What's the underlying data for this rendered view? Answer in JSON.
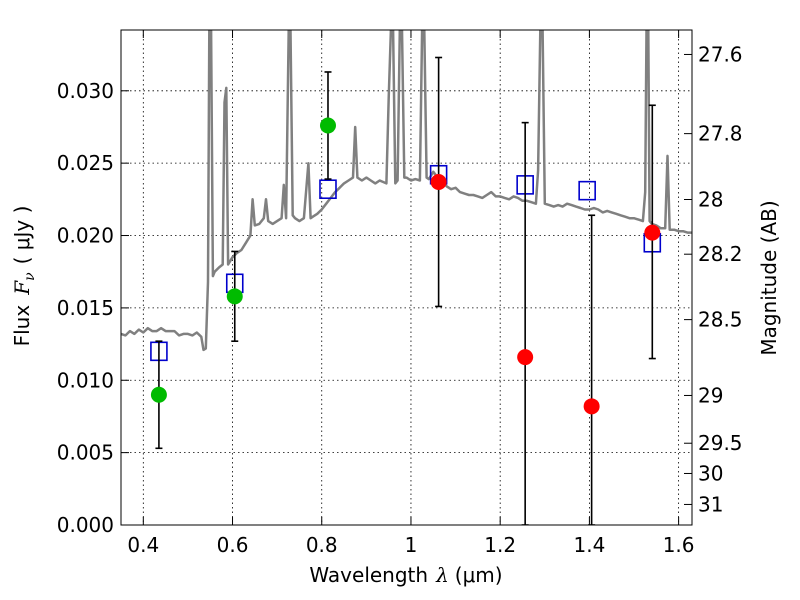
{
  "chart_data": {
    "type": "scatter",
    "xlabel_main": "Wavelength",
    "xlabel_symbol": "λ",
    "xlabel_unit": "(μm)",
    "ylabel_main": "Flux",
    "ylabel_symbol": "F",
    "ylabel_sub": "ν",
    "ylabel_unit": "( μJy )",
    "y2label": "Magnitude (AB)",
    "xlim": [
      0.35,
      1.63
    ],
    "ylim": [
      0.0,
      0.0342
    ],
    "grid": true,
    "x_ticks": [
      {
        "value": 0.4,
        "label": "0.4"
      },
      {
        "value": 0.6,
        "label": "0.6"
      },
      {
        "value": 0.8,
        "label": "0.8"
      },
      {
        "value": 1.0,
        "label": "1"
      },
      {
        "value": 1.2,
        "label": "1.2"
      },
      {
        "value": 1.4,
        "label": "1.4"
      },
      {
        "value": 1.6,
        "label": "1.6"
      }
    ],
    "y_ticks": [
      {
        "value": 0.0,
        "label": "0.000"
      },
      {
        "value": 0.005,
        "label": "0.005"
      },
      {
        "value": 0.01,
        "label": "0.010"
      },
      {
        "value": 0.015,
        "label": "0.015"
      },
      {
        "value": 0.02,
        "label": "0.020"
      },
      {
        "value": 0.025,
        "label": "0.025"
      },
      {
        "value": 0.03,
        "label": "0.030"
      }
    ],
    "y2_ticks": [
      {
        "label": "27.6",
        "flux": 0.03251
      },
      {
        "label": "27.8",
        "flux": 0.02704
      },
      {
        "label": "28",
        "flux": 0.02249
      },
      {
        "label": "28.2",
        "flux": 0.01871
      },
      {
        "label": "28.5",
        "flux": 0.01419
      },
      {
        "label": "29",
        "flux": 0.00895
      },
      {
        "label": "29.5",
        "flux": 0.00565
      },
      {
        "label": "30",
        "flux": 0.00356
      },
      {
        "label": "31",
        "flux": 0.00142
      }
    ],
    "model_spectrum": {
      "color": "#808080",
      "points": [
        [
          0.35,
          0.0132
        ],
        [
          0.36,
          0.0131
        ],
        [
          0.37,
          0.0134
        ],
        [
          0.38,
          0.0132
        ],
        [
          0.39,
          0.0135
        ],
        [
          0.4,
          0.0133
        ],
        [
          0.41,
          0.0136
        ],
        [
          0.42,
          0.0134
        ],
        [
          0.43,
          0.0134
        ],
        [
          0.44,
          0.0136
        ],
        [
          0.45,
          0.0134
        ],
        [
          0.46,
          0.0134
        ],
        [
          0.47,
          0.0134
        ],
        [
          0.48,
          0.0131
        ],
        [
          0.49,
          0.0132
        ],
        [
          0.5,
          0.0132
        ],
        [
          0.51,
          0.0131
        ],
        [
          0.52,
          0.0133
        ],
        [
          0.53,
          0.013
        ],
        [
          0.535,
          0.0121
        ],
        [
          0.54,
          0.0122
        ],
        [
          0.545,
          0.0168
        ],
        [
          0.548,
          0.0342
        ],
        [
          0.552,
          0.0342
        ],
        [
          0.556,
          0.0172
        ],
        [
          0.56,
          0.0175
        ],
        [
          0.57,
          0.0178
        ],
        [
          0.578,
          0.018
        ],
        [
          0.582,
          0.0292
        ],
        [
          0.586,
          0.0302
        ],
        [
          0.59,
          0.018
        ],
        [
          0.6,
          0.0185
        ],
        [
          0.61,
          0.0188
        ],
        [
          0.62,
          0.019
        ],
        [
          0.63,
          0.0195
        ],
        [
          0.64,
          0.02
        ],
        [
          0.645,
          0.0225
        ],
        [
          0.65,
          0.0207
        ],
        [
          0.66,
          0.0208
        ],
        [
          0.67,
          0.0212
        ],
        [
          0.675,
          0.0225
        ],
        [
          0.68,
          0.021
        ],
        [
          0.69,
          0.0208
        ],
        [
          0.7,
          0.021
        ],
        [
          0.71,
          0.0212
        ],
        [
          0.715,
          0.0235
        ],
        [
          0.72,
          0.0212
        ],
        [
          0.726,
          0.0342
        ],
        [
          0.73,
          0.0342
        ],
        [
          0.735,
          0.0214
        ],
        [
          0.74,
          0.0212
        ],
        [
          0.75,
          0.021
        ],
        [
          0.76,
          0.0212
        ],
        [
          0.77,
          0.025
        ],
        [
          0.775,
          0.0212
        ],
        [
          0.78,
          0.0213
        ],
        [
          0.79,
          0.0215
        ],
        [
          0.8,
          0.0218
        ],
        [
          0.81,
          0.0222
        ],
        [
          0.82,
          0.0226
        ],
        [
          0.83,
          0.023
        ],
        [
          0.84,
          0.0233
        ],
        [
          0.85,
          0.0236
        ],
        [
          0.86,
          0.0238
        ],
        [
          0.87,
          0.024
        ],
        [
          0.875,
          0.0275
        ],
        [
          0.88,
          0.024
        ],
        [
          0.89,
          0.0238
        ],
        [
          0.9,
          0.024
        ],
        [
          0.91,
          0.0238
        ],
        [
          0.92,
          0.0236
        ],
        [
          0.93,
          0.0238
        ],
        [
          0.945,
          0.0236
        ],
        [
          0.95,
          0.0295
        ],
        [
          0.955,
          0.0342
        ],
        [
          0.96,
          0.0342
        ],
        [
          0.965,
          0.0236
        ],
        [
          0.97,
          0.0238
        ],
        [
          0.975,
          0.0342
        ],
        [
          0.98,
          0.0342
        ],
        [
          0.985,
          0.024
        ],
        [
          0.99,
          0.024
        ],
        [
          1.0,
          0.0238
        ],
        [
          1.01,
          0.0239
        ],
        [
          1.02,
          0.0238
        ],
        [
          1.025,
          0.0342
        ],
        [
          1.03,
          0.0342
        ],
        [
          1.035,
          0.024
        ],
        [
          1.04,
          0.0239
        ],
        [
          1.05,
          0.0244
        ],
        [
          1.06,
          0.024
        ],
        [
          1.07,
          0.0238
        ],
        [
          1.08,
          0.0234
        ],
        [
          1.09,
          0.0232
        ],
        [
          1.1,
          0.0233
        ],
        [
          1.11,
          0.023
        ],
        [
          1.12,
          0.0229
        ],
        [
          1.13,
          0.0228
        ],
        [
          1.14,
          0.0228
        ],
        [
          1.15,
          0.0227
        ],
        [
          1.16,
          0.0226
        ],
        [
          1.17,
          0.0228
        ],
        [
          1.18,
          0.023
        ],
        [
          1.19,
          0.0227
        ],
        [
          1.2,
          0.0227
        ],
        [
          1.21,
          0.0226
        ],
        [
          1.22,
          0.0225
        ],
        [
          1.23,
          0.0227
        ],
        [
          1.24,
          0.0226
        ],
        [
          1.25,
          0.0224
        ],
        [
          1.26,
          0.0224
        ],
        [
          1.27,
          0.0223
        ],
        [
          1.28,
          0.0222
        ],
        [
          1.285,
          0.0245
        ],
        [
          1.29,
          0.0342
        ],
        [
          1.295,
          0.0342
        ],
        [
          1.3,
          0.0222
        ],
        [
          1.31,
          0.0221
        ],
        [
          1.32,
          0.022
        ],
        [
          1.33,
          0.0221
        ],
        [
          1.34,
          0.022
        ],
        [
          1.35,
          0.0222
        ],
        [
          1.36,
          0.0221
        ],
        [
          1.37,
          0.022
        ],
        [
          1.38,
          0.0219
        ],
        [
          1.39,
          0.0218
        ],
        [
          1.4,
          0.0218
        ],
        [
          1.41,
          0.0219
        ],
        [
          1.42,
          0.0218
        ],
        [
          1.43,
          0.0216
        ],
        [
          1.44,
          0.0217
        ],
        [
          1.45,
          0.0216
        ],
        [
          1.46,
          0.0215
        ],
        [
          1.47,
          0.0214
        ],
        [
          1.48,
          0.0213
        ],
        [
          1.49,
          0.0212
        ],
        [
          1.5,
          0.0212
        ],
        [
          1.51,
          0.0211
        ],
        [
          1.52,
          0.021
        ],
        [
          1.525,
          0.023
        ],
        [
          1.528,
          0.0342
        ],
        [
          1.532,
          0.0342
        ],
        [
          1.535,
          0.021
        ],
        [
          1.54,
          0.0208
        ],
        [
          1.55,
          0.0207
        ],
        [
          1.56,
          0.0205
        ],
        [
          1.57,
          0.0205
        ],
        [
          1.575,
          0.0255
        ],
        [
          1.58,
          0.0204
        ],
        [
          1.59,
          0.0204
        ],
        [
          1.6,
          0.0203
        ],
        [
          1.61,
          0.0203
        ],
        [
          1.62,
          0.0202
        ],
        [
          1.63,
          0.0202
        ]
      ]
    },
    "model_photometry": {
      "color": "#0000cc",
      "points": [
        {
          "x": 0.435,
          "y": 0.012
        },
        {
          "x": 0.605,
          "y": 0.0167
        },
        {
          "x": 0.814,
          "y": 0.0232
        },
        {
          "x": 1.062,
          "y": 0.0242
        },
        {
          "x": 1.256,
          "y": 0.0235
        },
        {
          "x": 1.395,
          "y": 0.0231
        },
        {
          "x": 1.541,
          "y": 0.0195
        }
      ]
    },
    "detections": {
      "color": "#00bb00",
      "points": [
        {
          "x": 0.435,
          "y": 0.009,
          "ylo": 0.0053,
          "yhi": 0.0127
        },
        {
          "x": 0.605,
          "y": 0.0158,
          "ylo": 0.0127,
          "yhi": 0.0189
        },
        {
          "x": 0.814,
          "y": 0.0276,
          "ylo": 0.0239,
          "yhi": 0.0313
        }
      ]
    },
    "non_detections": {
      "color": "#ff0000",
      "points": [
        {
          "x": 1.062,
          "y": 0.0237,
          "ylo": 0.0151,
          "yhi": 0.0323
        },
        {
          "x": 1.256,
          "y": 0.0116,
          "ylo": 0.0,
          "yhi": 0.0278
        },
        {
          "x": 1.405,
          "y": 0.0082,
          "ylo": 0.0,
          "yhi": 0.0214
        },
        {
          "x": 1.541,
          "y": 0.0202,
          "ylo": 0.0115,
          "yhi": 0.029
        }
      ]
    }
  }
}
